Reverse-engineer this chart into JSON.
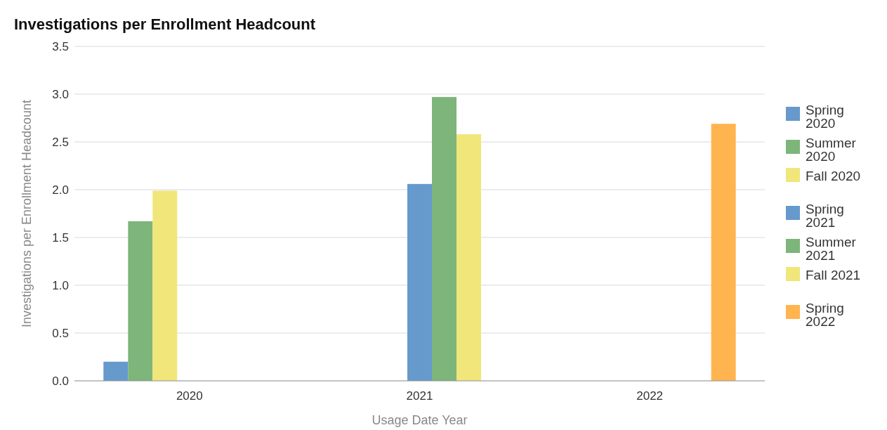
{
  "chart_data": {
    "type": "bar",
    "title": "Investigations per Enrollment Headcount",
    "xlabel": "Usage Date Year",
    "ylabel": "Investigations per Enrollment Headcount",
    "categories": [
      "2020",
      "2021",
      "2022"
    ],
    "series": [
      {
        "name": "Spring 2020",
        "color": "#6699cc",
        "values": [
          0.2,
          null,
          null
        ]
      },
      {
        "name": "Summer 2020",
        "color": "#7db57a",
        "values": [
          1.67,
          null,
          null
        ]
      },
      {
        "name": "Fall 2020",
        "color": "#f0e67a",
        "values": [
          1.99,
          null,
          null
        ]
      },
      {
        "name": "Spring 2021",
        "color": "#6699cc",
        "values": [
          null,
          2.06,
          null
        ]
      },
      {
        "name": "Summer 2021",
        "color": "#7db57a",
        "values": [
          null,
          2.97,
          null
        ]
      },
      {
        "name": "Fall 2021",
        "color": "#f0e67a",
        "values": [
          null,
          2.58,
          null
        ]
      },
      {
        "name": "Spring 2022",
        "color": "#ffb44f",
        "values": [
          null,
          null,
          2.69
        ]
      }
    ],
    "ylim": [
      0,
      3.5
    ],
    "yticks": [
      {
        "value": 0,
        "label": "0.0"
      },
      {
        "value": 0.5,
        "label": "0.5"
      },
      {
        "value": 1,
        "label": "1.0"
      },
      {
        "value": 1.5,
        "label": "1.5"
      },
      {
        "value": 2,
        "label": "2.0"
      },
      {
        "value": 2.5,
        "label": "2.5"
      },
      {
        "value": 3,
        "label": "3.0"
      },
      {
        "value": 3.5,
        "label": "3.5"
      }
    ],
    "grid": "y",
    "legend": "right"
  }
}
